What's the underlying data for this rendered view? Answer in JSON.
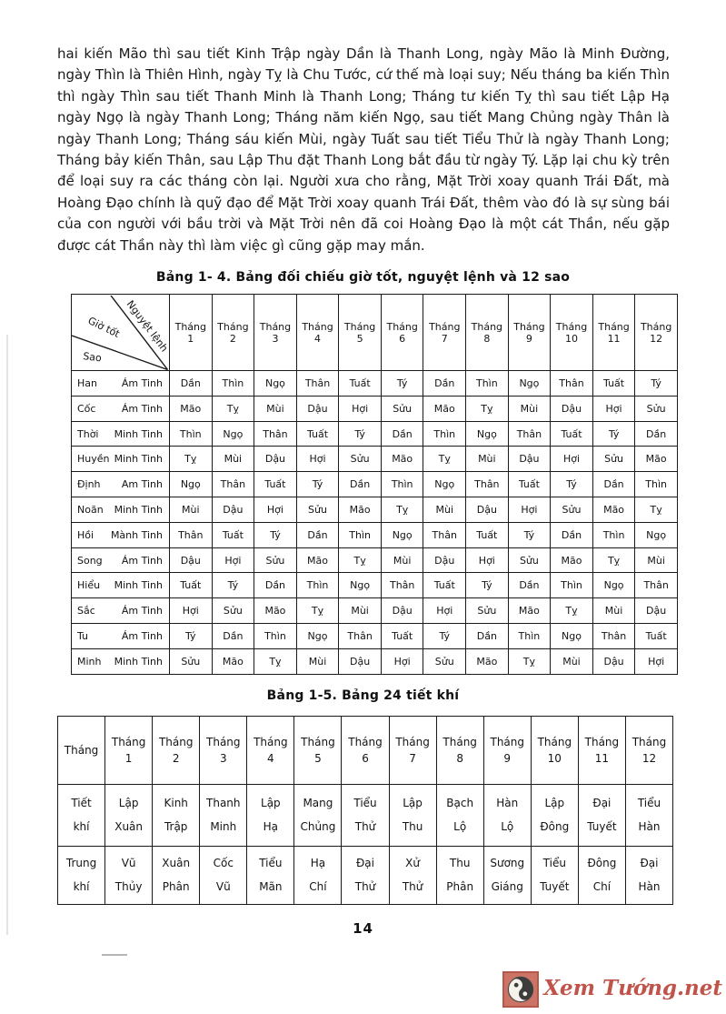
{
  "page": {
    "page_number": "14"
  },
  "paragraph": "hai kiến Mão thì sau tiết Kinh Trập ngày Dần là Thanh Long, ngày Mão là Minh Đường, ngày Thìn là Thiên Hình, ngày Tỵ là Chu Tước, cứ thế mà loại suy; Nếu tháng ba kiến Thìn thì ngày Thìn sau tiết Thanh Minh là Thanh Long; Tháng tư kiến Tỵ thì sau tiết Lập Hạ ngày Ngọ là ngày Thanh Long; Tháng năm kiến Ngọ, sau tiết Mang Chủng ngày Thân là ngày Thanh Long; Tháng sáu kiến Mùi, ngày Tuất sau tiết Tiểu Thử là ngày Thanh Long; Tháng bảy kiến Thân, sau Lập Thu đặt Thanh Long bắt đầu từ ngày Tý. Lặp lại chu kỳ trên để loại suy ra các tháng còn lại. Người xưa cho rằng, Mặt Trời xoay quanh Trái Đất, mà Hoàng Đạo chính là quỹ đạo để Mặt Trời xoay quanh Trái Đất, thêm vào đó là sự sùng bái của con người với bầu trời và Mặt Trời nên đã coi Hoàng Đạo là một cát Thần, nếu gặp được cát Thần này thì làm việc gì cũng gặp may mắn.",
  "table1": {
    "caption": "Bảng 1- 4. Bảng đối chiếu giờ tốt, nguyệt lệnh và 12 sao",
    "corner_labels": {
      "top": "Nguyệt lệnh",
      "middle": "Giờ tốt",
      "bottom": "Sao"
    },
    "month_word": "Tháng",
    "months": [
      "1",
      "2",
      "3",
      "4",
      "5",
      "6",
      "7",
      "8",
      "9",
      "10",
      "11",
      "12"
    ],
    "rows": [
      {
        "star": "Han",
        "type": "Ám Tinh",
        "cells": [
          "Dần",
          "Thìn",
          "Ngọ",
          "Thân",
          "Tuất",
          "Tý",
          "Dần",
          "Thìn",
          "Ngọ",
          "Thân",
          "Tuất",
          "Tý"
        ]
      },
      {
        "star": "Cốc",
        "type": "Ám Tinh",
        "cells": [
          "Mão",
          "Tỵ",
          "Mùi",
          "Dậu",
          "Hợi",
          "Sửu",
          "Mão",
          "Tỵ",
          "Mùi",
          "Dậu",
          "Hợi",
          "Sửu"
        ]
      },
      {
        "star": "Thời",
        "type": "Minh Tinh",
        "cells": [
          "Thìn",
          "Ngọ",
          "Thân",
          "Tuất",
          "Tý",
          "Dần",
          "Thìn",
          "Ngọ",
          "Thân",
          "Tuất",
          "Tý",
          "Dần"
        ]
      },
      {
        "star": "Huyền",
        "type": "Minh Tinh",
        "cells": [
          "Tỵ",
          "Mùi",
          "Dậu",
          "Hợi",
          "Sửu",
          "Mão",
          "Tỵ",
          "Mùi",
          "Dậu",
          "Hợi",
          "Sửu",
          "Mão"
        ]
      },
      {
        "star": "Định",
        "type": "Am Tinh",
        "cells": [
          "Ngọ",
          "Thân",
          "Tuất",
          "Tý",
          "Dần",
          "Thìn",
          "Ngọ",
          "Thân",
          "Tuất",
          "Tý",
          "Dần",
          "Thìn"
        ]
      },
      {
        "star": "Noãn",
        "type": "Minh Tinh",
        "cells": [
          "Mùi",
          "Dậu",
          "Hợi",
          "Sửu",
          "Mão",
          "Tỵ",
          "Mùi",
          "Dậu",
          "Hợi",
          "Sửu",
          "Mão",
          "Tỵ"
        ]
      },
      {
        "star": "Hồi",
        "type": "Mành Tinh",
        "cells": [
          "Thân",
          "Tuất",
          "Tý",
          "Dần",
          "Thìn",
          "Ngọ",
          "Thân",
          "Tuất",
          "Tý",
          "Dần",
          "Thìn",
          "Ngọ"
        ]
      },
      {
        "star": "Song",
        "type": "Ám Tinh",
        "cells": [
          "Dậu",
          "Hợi",
          "Sửu",
          "Mão",
          "Tỵ",
          "Mùi",
          "Dậu",
          "Hợi",
          "Sửu",
          "Mão",
          "Tỵ",
          "Mùi"
        ]
      },
      {
        "star": "Hiểu",
        "type": "Minh Tinh",
        "cells": [
          "Tuất",
          "Tý",
          "Dần",
          "Thìn",
          "Ngọ",
          "Thân",
          "Tuất",
          "Tý",
          "Dần",
          "Thìn",
          "Ngọ",
          "Thân"
        ]
      },
      {
        "star": "Sắc",
        "type": "Ám Tinh",
        "cells": [
          "Hợi",
          "Sửu",
          "Mão",
          "Tỵ",
          "Mùi",
          "Dậu",
          "Hợi",
          "Sửu",
          "Mão",
          "Tỵ",
          "Mùi",
          "Dậu"
        ]
      },
      {
        "star": "Tu",
        "type": "Ám Tinh",
        "cells": [
          "Tý",
          "Dần",
          "Thìn",
          "Ngọ",
          "Thân",
          "Tuất",
          "Tý",
          "Dần",
          "Thìn",
          "Ngọ",
          "Thân",
          "Tuất"
        ]
      },
      {
        "star": "Minh",
        "type": "Minh Tinh",
        "cells": [
          "Sửu",
          "Mão",
          "Tỵ",
          "Mùi",
          "Dậu",
          "Hợi",
          "Sửu",
          "Mão",
          "Tỵ",
          "Mùi",
          "Dậu",
          "Hợi"
        ]
      }
    ]
  },
  "table2": {
    "caption": "Bảng 1-5. Bảng 24 tiết khí",
    "corner_label": "Tháng",
    "month_word": "Tháng",
    "months": [
      "1",
      "2",
      "3",
      "4",
      "5",
      "6",
      "7",
      "8",
      "9",
      "10",
      "11",
      "12"
    ],
    "rows": [
      {
        "label": [
          "Tiết",
          "khí"
        ],
        "cells": [
          [
            "Lập",
            "Xuân"
          ],
          [
            "Kinh",
            "Trập"
          ],
          [
            "Thanh",
            "Minh"
          ],
          [
            "Lập",
            "Hạ"
          ],
          [
            "Mang",
            "Chủng"
          ],
          [
            "Tiểu",
            "Thử"
          ],
          [
            "Lập",
            "Thu"
          ],
          [
            "Bạch",
            "Lộ"
          ],
          [
            "Hàn",
            "Lộ"
          ],
          [
            "Lập",
            "Đông"
          ],
          [
            "Đại",
            "Tuyết"
          ],
          [
            "Tiểu",
            "Hàn"
          ]
        ]
      },
      {
        "label": [
          "Trung",
          "khí"
        ],
        "cells": [
          [
            "Vũ",
            "Thủy"
          ],
          [
            "Xuân",
            "Phân"
          ],
          [
            "Cốc",
            "Vũ"
          ],
          [
            "Tiểu",
            "Mãn"
          ],
          [
            "Hạ",
            "Chí"
          ],
          [
            "Đại",
            "Thử"
          ],
          [
            "Xử",
            "Thử"
          ],
          [
            "Thu",
            "Phân"
          ],
          [
            "Sương",
            "Giáng"
          ],
          [
            "Tiểu",
            "Tuyết"
          ],
          [
            "Đông",
            "Chí"
          ],
          [
            "Đại",
            "Hàn"
          ]
        ]
      }
    ]
  },
  "watermark": {
    "text": "Xem Tướng.net",
    "icon": "yin-yang-icon",
    "square_color": "#cb7365",
    "text_color": "#c0544a"
  }
}
